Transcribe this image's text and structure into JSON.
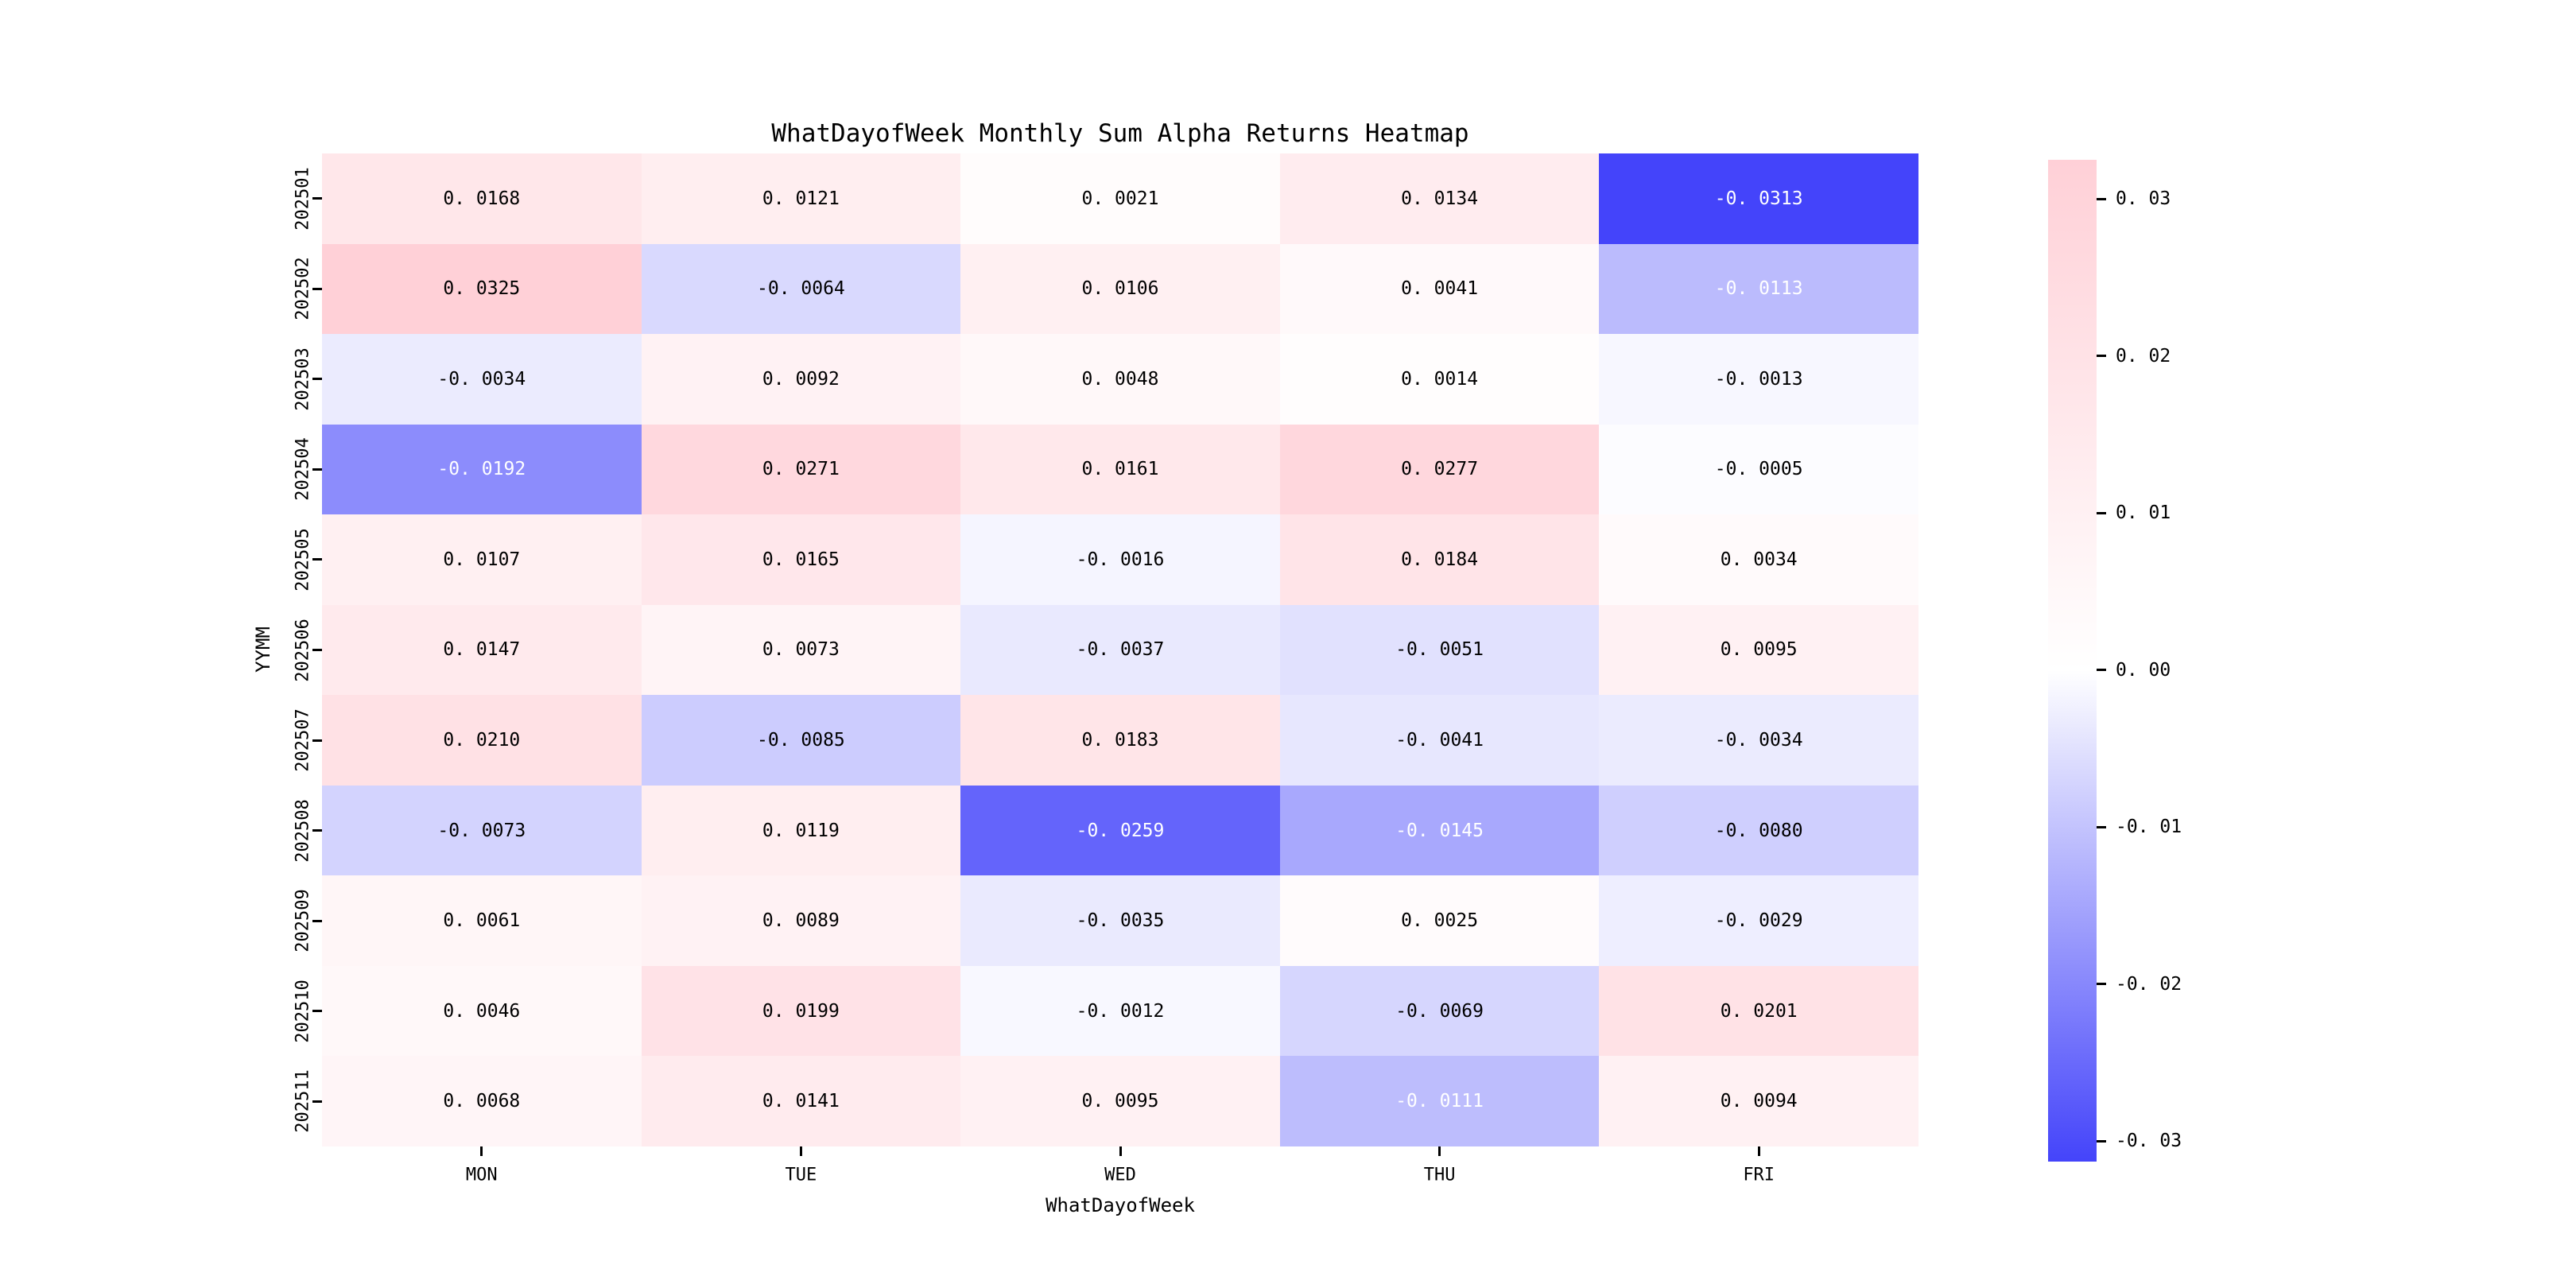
{
  "title": "WhatDayofWeek Monthly Sum Alpha Returns Heatmap",
  "chart_data": {
    "type": "heatmap",
    "title": "WhatDayofWeek Monthly Sum Alpha Returns Heatmap",
    "xlabel": "WhatDayofWeek",
    "ylabel": "YYMM",
    "x_tick_labels": [
      "MON",
      "TUE",
      "WED",
      "THU",
      "FRI"
    ],
    "y_tick_labels": [
      "202501",
      "202502",
      "202503",
      "202504",
      "202505",
      "202506",
      "202507",
      "202508",
      "202509",
      "202510",
      "202511"
    ],
    "values": [
      [
        0.0168,
        0.0121,
        0.0021,
        0.0134,
        -0.0313
      ],
      [
        0.0325,
        -0.0064,
        0.0106,
        0.0041,
        -0.0113
      ],
      [
        -0.0034,
        0.0092,
        0.0048,
        0.0014,
        -0.0013
      ],
      [
        -0.0192,
        0.0271,
        0.0161,
        0.0277,
        -0.0005
      ],
      [
        0.0107,
        0.0165,
        -0.0016,
        0.0184,
        0.0034
      ],
      [
        0.0147,
        0.0073,
        -0.0037,
        -0.0051,
        0.0095
      ],
      [
        0.021,
        -0.0085,
        0.0183,
        -0.0041,
        -0.0034
      ],
      [
        -0.0073,
        0.0119,
        -0.0259,
        -0.0145,
        -0.008
      ],
      [
        0.0061,
        0.0089,
        -0.0035,
        0.0025,
        -0.0029
      ],
      [
        0.0046,
        0.0199,
        -0.0012,
        -0.0069,
        0.0201
      ],
      [
        0.0068,
        0.0141,
        0.0095,
        -0.0111,
        0.0094
      ]
    ],
    "vmin": -0.0313,
    "vmax": 0.0325,
    "center": 0,
    "annotation_decimals": 4,
    "white_text_threshold": -0.011,
    "colorbar_ticks": [
      0.03,
      0.02,
      0.01,
      0.0,
      -0.01,
      -0.02,
      -0.03
    ],
    "colorbar_side": "right",
    "legend_position": "right",
    "grid": false,
    "colors": {
      "negative_end": "#4444fa",
      "center": "#ffffff",
      "positive_end": "#ffd0d7",
      "annotation_dark": "#000000",
      "annotation_light": "#ffffff",
      "axis_text": "#000000",
      "background": "#ffffff"
    }
  }
}
